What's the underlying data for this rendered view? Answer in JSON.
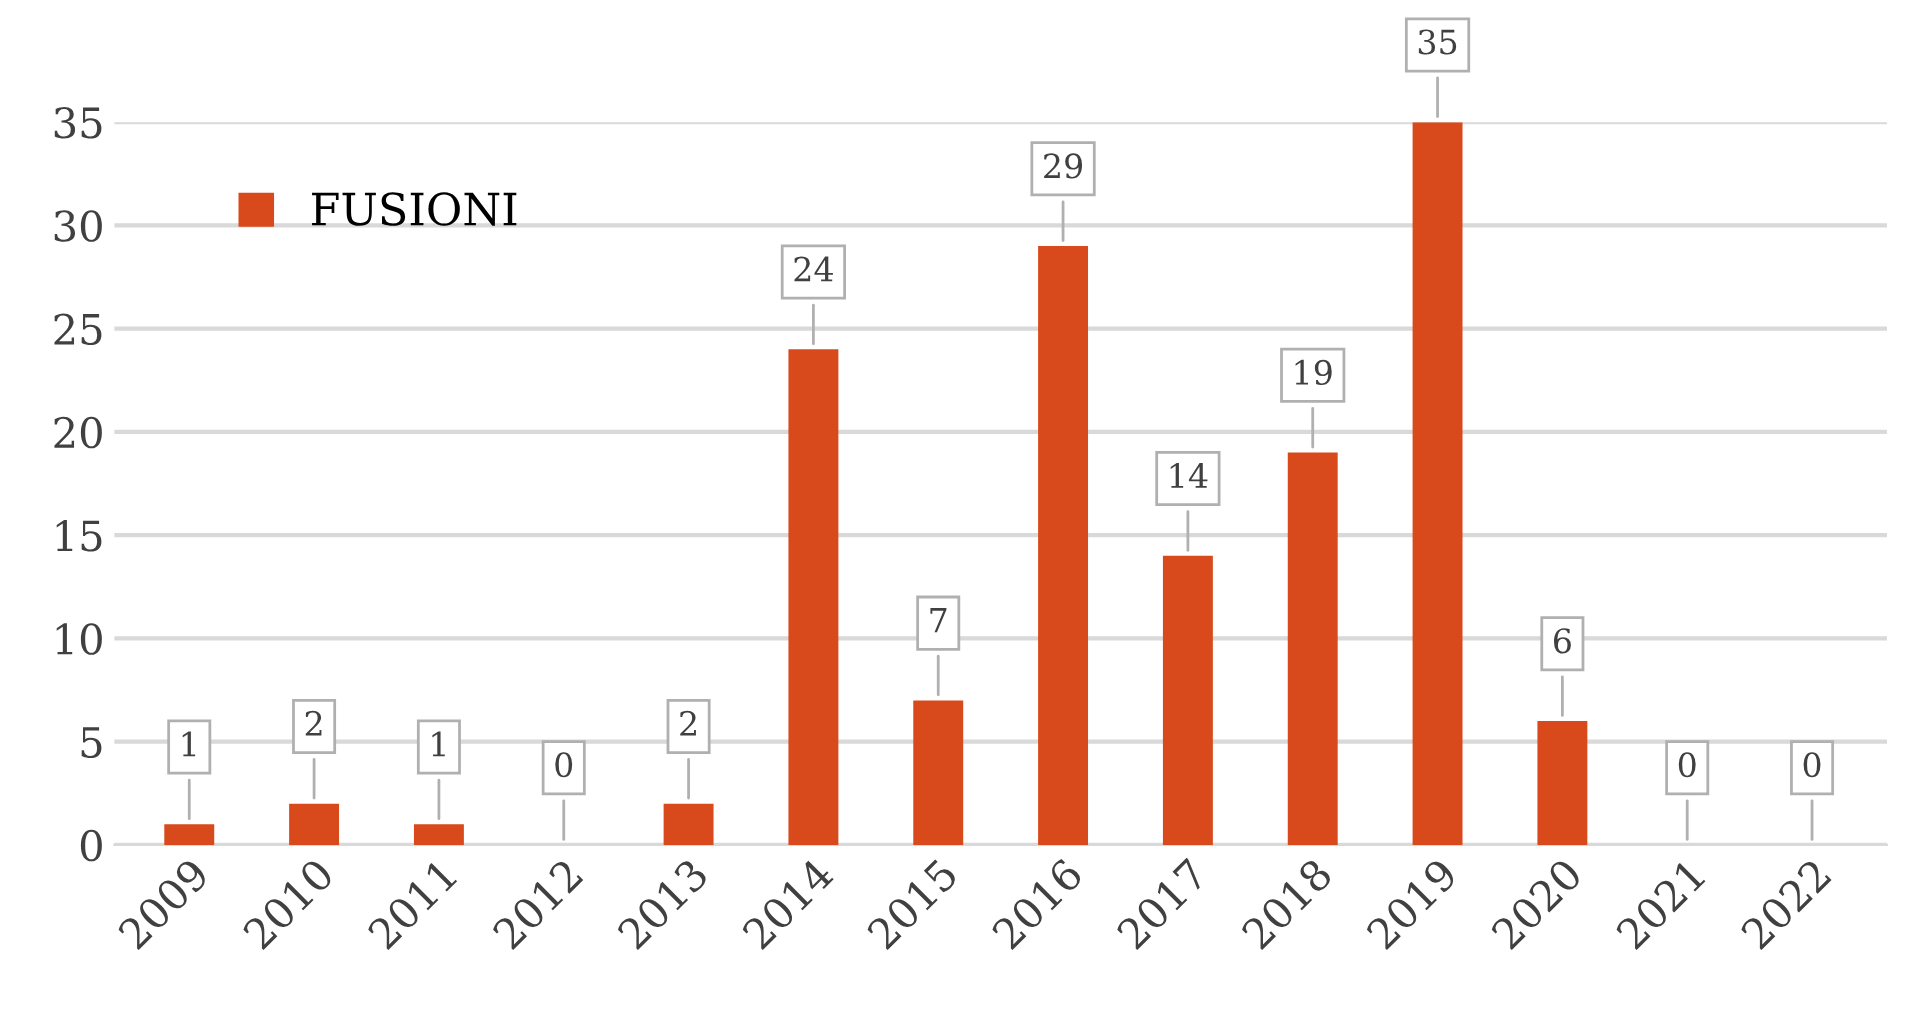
{
  "chart_data": {
    "type": "bar",
    "categories": [
      "2009",
      "2010",
      "2011",
      "2012",
      "2013",
      "2014",
      "2015",
      "2016",
      "2017",
      "2018",
      "2019",
      "2020",
      "2021",
      "2022"
    ],
    "series": [
      {
        "name": "FUSIONI",
        "color": "#d84a1b",
        "values": [
          1,
          2,
          1,
          0,
          2,
          24,
          7,
          29,
          14,
          19,
          35,
          6,
          0,
          0
        ]
      }
    ],
    "ylim": [
      0,
      35
    ],
    "yticks": [
      0,
      5,
      10,
      15,
      20,
      25,
      30,
      35
    ],
    "grid": "y",
    "legend": "top left",
    "data_labels": true
  }
}
